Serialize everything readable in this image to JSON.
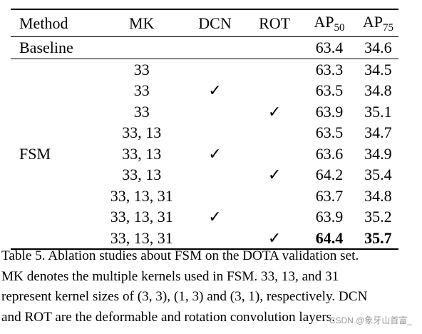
{
  "table": {
    "headers": [
      "Method",
      "MK",
      "DCN",
      "ROT",
      "AP",
      "AP"
    ],
    "header_subscripts": [
      "",
      "",
      "",
      "",
      "50",
      "75"
    ],
    "baseline": {
      "method": "Baseline",
      "mk": "",
      "dcn": "",
      "rot": "",
      "ap50": "63.4",
      "ap75": "34.6"
    },
    "group_label": "FSM",
    "rows": [
      {
        "mk": "33",
        "dcn": "",
        "rot": "",
        "ap50": "63.3",
        "ap75": "34.5"
      },
      {
        "mk": "33",
        "dcn": "✓",
        "rot": "",
        "ap50": "63.5",
        "ap75": "34.8"
      },
      {
        "mk": "33",
        "dcn": "",
        "rot": "✓",
        "ap50": "63.9",
        "ap75": "35.1"
      },
      {
        "mk": "33, 13",
        "dcn": "",
        "rot": "",
        "ap50": "63.5",
        "ap75": "34.7"
      },
      {
        "mk": "33, 13",
        "dcn": "✓",
        "rot": "",
        "ap50": "63.6",
        "ap75": "34.9"
      },
      {
        "mk": "33, 13",
        "dcn": "",
        "rot": "✓",
        "ap50": "64.2",
        "ap75": "35.4"
      },
      {
        "mk": "33, 13, 31",
        "dcn": "",
        "rot": "",
        "ap50": "63.7",
        "ap75": "34.8"
      },
      {
        "mk": "33, 13, 31",
        "dcn": "✓",
        "rot": "",
        "ap50": "63.9",
        "ap75": "35.2"
      },
      {
        "mk": "33, 13, 31",
        "dcn": "",
        "rot": "✓",
        "ap50": "64.4",
        "ap75": "35.7"
      }
    ]
  },
  "caption": {
    "lines": [
      "Table 5. Ablation studies about FSM on the DOTA validation set.",
      "MK denotes the multiple kernels used in FSM. 33, 13, and 31",
      "represent kernel sizes of (3, 3), (1, 3) and (3, 1), respectively. DCN",
      "and ROT are the deformable and rotation convolution layers."
    ]
  },
  "watermark": "CSDN @象牙山首富_"
}
